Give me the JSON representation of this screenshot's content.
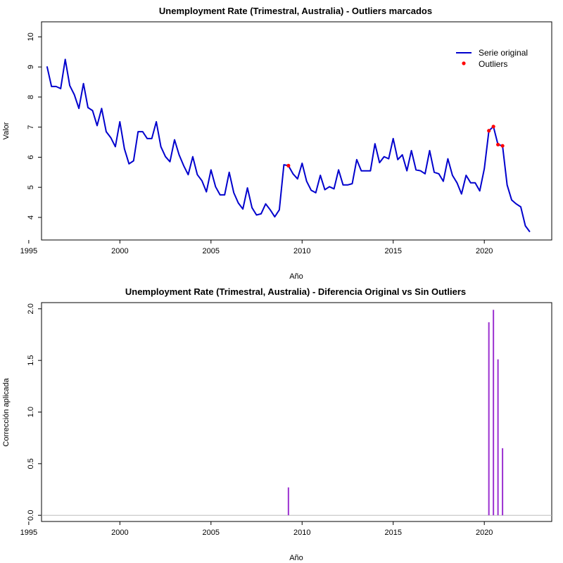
{
  "colors": {
    "series": "#0000cd",
    "outlier": "#ff0000",
    "correction": "#9b30d0",
    "baseline": "#bebebe"
  },
  "chart_data": [
    {
      "type": "line",
      "title": "Unemployment Rate (Trimestral, Australia) - Outliers marcados",
      "xlabel": "Año",
      "ylabel": "Valor",
      "xlim": [
        1995.7,
        2023.7
      ],
      "ylim": [
        3.25,
        10.5
      ],
      "xticks": [
        1995,
        2000,
        2005,
        2010,
        2015,
        2020
      ],
      "yticks": [
        4,
        5,
        6,
        7,
        8,
        9,
        10
      ],
      "legend_position": "top-right",
      "legend": [
        "Serie original",
        "Outliers"
      ],
      "series": [
        {
          "name": "Serie original",
          "x_start": 1996.0,
          "step": 0.25,
          "values": [
            9.02,
            8.35,
            8.35,
            8.28,
            9.25,
            8.38,
            8.08,
            7.62,
            8.45,
            7.65,
            7.55,
            7.05,
            7.62,
            6.85,
            6.65,
            6.35,
            7.18,
            6.28,
            5.78,
            5.88,
            6.85,
            6.85,
            6.62,
            6.62,
            7.18,
            6.35,
            6.02,
            5.85,
            6.58,
            6.08,
            5.72,
            5.42,
            6.02,
            5.42,
            5.22,
            4.85,
            5.58,
            5.02,
            4.75,
            4.75,
            5.5,
            4.82,
            4.48,
            4.28,
            4.98,
            4.32,
            4.08,
            4.12,
            4.45,
            4.25,
            4.02,
            4.25,
            5.75,
            5.72,
            5.45,
            5.28,
            5.8,
            5.2,
            4.9,
            4.82,
            5.4,
            4.92,
            5.02,
            4.95,
            5.58,
            5.08,
            5.08,
            5.12,
            5.92,
            5.55,
            5.55,
            5.55,
            6.45,
            5.82,
            6.02,
            5.95,
            6.62,
            5.92,
            6.08,
            5.55,
            6.22,
            5.58,
            5.55,
            5.45,
            6.22,
            5.5,
            5.45,
            5.2,
            5.95,
            5.4,
            5.15,
            4.78,
            5.4,
            5.15,
            5.15,
            4.88,
            5.62,
            6.88,
            7.02,
            6.42,
            6.38,
            5.08,
            4.58,
            4.45,
            4.35,
            3.72,
            3.52
          ]
        },
        {
          "name": "Outliers",
          "points": [
            [
              2009.25,
              5.72
            ],
            [
              2020.25,
              6.88
            ],
            [
              2020.5,
              7.02
            ],
            [
              2020.75,
              6.42
            ],
            [
              2021.0,
              6.38
            ]
          ]
        }
      ]
    },
    {
      "type": "bar",
      "title": "Unemployment Rate (Trimestral, Australia) - Diferencia Original vs Sin Outliers",
      "xlabel": "Año",
      "ylabel": "Corrección aplicada",
      "xlim": [
        1995.7,
        2023.7
      ],
      "ylim": [
        -0.06,
        2.06
      ],
      "xticks": [
        1995,
        2000,
        2005,
        2010,
        2015,
        2020
      ],
      "yticks": [
        "0.0",
        "0.5",
        "1.0",
        "1.5",
        "2.0"
      ],
      "x": [
        2009.25,
        2020.25,
        2020.5,
        2020.75,
        2021.0
      ],
      "values": [
        0.27,
        1.87,
        1.99,
        1.51,
        0.65
      ]
    }
  ]
}
